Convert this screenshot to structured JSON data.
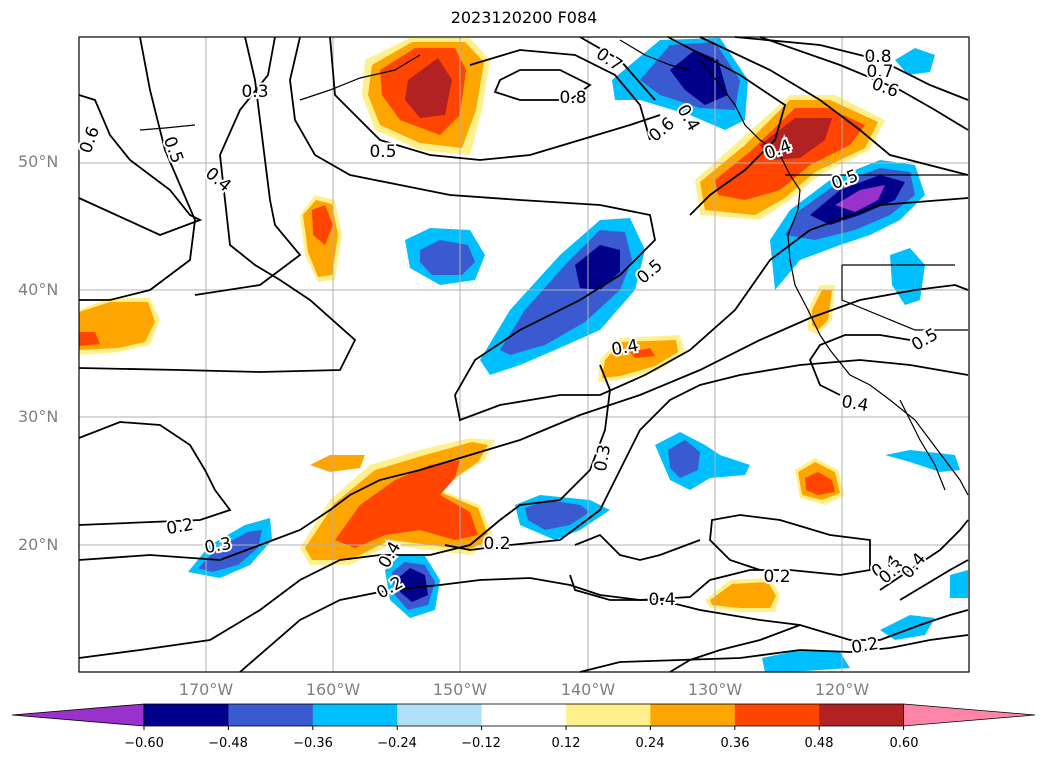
{
  "title": "2023120200 F084",
  "lat_labels": [
    "50°N",
    "40°N",
    "30°N",
    "20°N"
  ],
  "lon_labels": [
    "170°W",
    "160°W",
    "150°W",
    "140°W",
    "130°W",
    "120°W"
  ],
  "contour_labels": [
    "0.3",
    "0.5",
    "0.4",
    "0.5",
    "0.6",
    "0.5",
    "0.7",
    "0.8",
    "0.6",
    "0.4",
    "0.8",
    "0.7",
    "0.6",
    "0.4",
    "0.4",
    "0.5",
    "0.4",
    "0.5",
    "0.3",
    "0.4",
    "0.2",
    "0.3",
    "0.2",
    "0.2",
    "0.4",
    "0.2",
    "0.3",
    "0.4",
    "0.2",
    "0.4"
  ],
  "colorbar": {
    "ticks": [
      "−0.60",
      "−0.48",
      "−0.36",
      "−0.24",
      "−0.12",
      "0.12",
      "0.24",
      "0.36",
      "0.48",
      "0.60"
    ],
    "colors": [
      "#9932cc",
      "#00008b",
      "#3a5bd0",
      "#00bfff",
      "#b0e0f8",
      "#ffffff",
      "#fff08c",
      "#ffa500",
      "#ff4500",
      "#b22222",
      "#ff85a8"
    ]
  },
  "colors": {
    "light_blue": "#b0e0f8",
    "cyan": "#00bfff",
    "royal": "#3a5bd0",
    "navy": "#00008b",
    "purple": "#9932cc",
    "yellow": "#fff08c",
    "orange": "#ffa500",
    "red": "#ff4500",
    "darkred": "#b22222"
  }
}
